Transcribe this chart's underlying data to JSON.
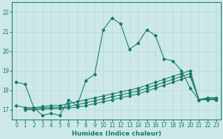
{
  "xlabel": "Humidex (Indice chaleur)",
  "ylabel": "",
  "background_color": "#cce8e8",
  "grid_color": "#b8d4d4",
  "line_color": "#1a7a6a",
  "xlim": [
    -0.5,
    23.5
  ],
  "ylim": [
    16.5,
    22.5
  ],
  "yticks": [
    17,
    18,
    19,
    20,
    21,
    22
  ],
  "xticks": [
    0,
    1,
    2,
    3,
    4,
    5,
    6,
    7,
    8,
    9,
    10,
    11,
    12,
    13,
    14,
    15,
    16,
    17,
    18,
    19,
    20,
    21,
    22,
    23
  ],
  "series1_x": [
    0,
    1,
    2,
    3,
    4,
    5,
    6,
    7,
    8,
    9,
    10,
    11,
    12,
    13,
    14,
    15,
    16,
    17,
    18,
    19,
    20,
    21,
    22,
    23
  ],
  "series1_y": [
    18.4,
    18.3,
    17.1,
    16.7,
    16.8,
    16.7,
    17.5,
    17.2,
    18.5,
    18.8,
    21.1,
    21.7,
    21.4,
    20.1,
    20.4,
    21.1,
    20.8,
    19.6,
    19.5,
    19.0,
    18.1,
    17.5,
    17.6,
    17.6
  ],
  "series2_x": [
    0,
    1,
    2,
    3,
    4,
    5,
    6,
    7,
    8,
    9,
    10,
    11,
    12,
    13,
    14,
    15,
    16,
    17,
    18,
    19,
    20,
    21,
    22,
    23
  ],
  "series2_y": [
    17.2,
    17.1,
    17.1,
    17.15,
    17.2,
    17.2,
    17.3,
    17.4,
    17.5,
    17.6,
    17.7,
    17.8,
    17.9,
    18.0,
    18.1,
    18.25,
    18.4,
    18.55,
    18.7,
    18.85,
    19.0,
    17.5,
    17.6,
    17.6
  ],
  "series3_x": [
    1,
    2,
    3,
    4,
    5,
    6,
    7,
    8,
    9,
    10,
    11,
    12,
    13,
    14,
    15,
    16,
    17,
    18,
    19,
    20,
    21,
    22,
    23
  ],
  "series3_y": [
    17.05,
    17.05,
    17.08,
    17.1,
    17.1,
    17.15,
    17.25,
    17.35,
    17.45,
    17.55,
    17.65,
    17.75,
    17.85,
    17.95,
    18.1,
    18.25,
    18.4,
    18.55,
    18.7,
    18.85,
    17.5,
    17.55,
    17.55
  ],
  "series4_x": [
    1,
    2,
    3,
    4,
    5,
    6,
    7,
    8,
    9,
    10,
    11,
    12,
    13,
    14,
    15,
    16,
    17,
    18,
    19,
    20,
    21,
    22,
    23
  ],
  "series4_y": [
    17.0,
    17.0,
    17.02,
    17.04,
    17.05,
    17.08,
    17.12,
    17.2,
    17.3,
    17.4,
    17.5,
    17.6,
    17.7,
    17.8,
    17.95,
    18.1,
    18.25,
    18.4,
    18.55,
    18.7,
    17.5,
    17.5,
    17.5
  ]
}
